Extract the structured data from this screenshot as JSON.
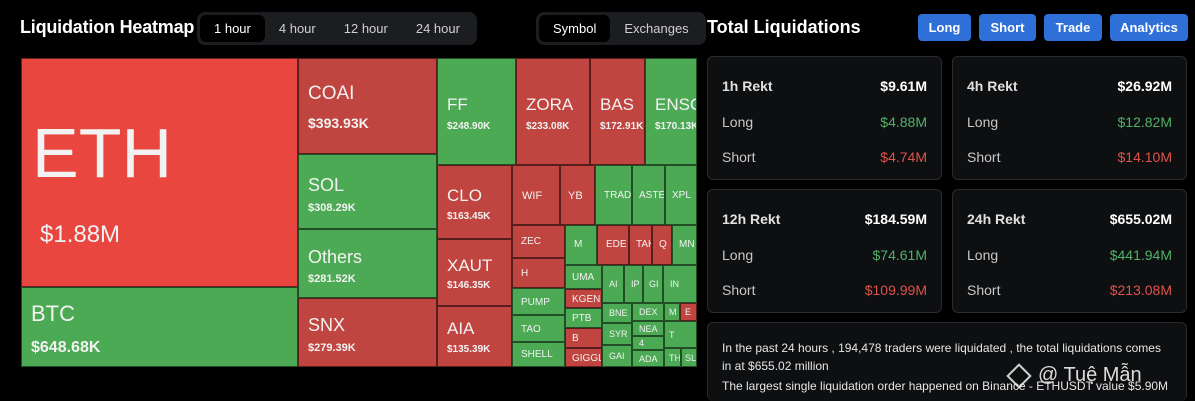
{
  "header": {
    "title": "Liquidation Heatmap",
    "time_tabs": [
      "1 hour",
      "4 hour",
      "12 hour",
      "24 hour"
    ],
    "view_tabs": [
      "Symbol",
      "Exchanges"
    ]
  },
  "right_header": {
    "title": "Total Liquidations",
    "buttons": [
      "Long",
      "Short",
      "Trade",
      "Analytics"
    ]
  },
  "heatmap": {
    "cells": [
      {
        "symbol": "ETH",
        "value": "$1.88M"
      },
      {
        "symbol": "BTC",
        "value": "$648.68K"
      },
      {
        "symbol": "COAI",
        "value": "$393.93K"
      },
      {
        "symbol": "SOL",
        "value": "$308.29K"
      },
      {
        "symbol": "Others",
        "value": "$281.52K"
      },
      {
        "symbol": "SNX",
        "value": "$279.39K"
      },
      {
        "symbol": "FF",
        "value": "$248.90K"
      },
      {
        "symbol": "ZORA",
        "value": "$233.08K"
      },
      {
        "symbol": "BAS",
        "value": "$172.91K"
      },
      {
        "symbol": "ENSO",
        "value": "$170.13K"
      },
      {
        "symbol": "CLO",
        "value": "$163.45K"
      },
      {
        "symbol": "XAUT",
        "value": "$146.35K"
      },
      {
        "symbol": "AIA",
        "value": "$135.39K"
      },
      {
        "symbol": "WIF",
        "value": ""
      },
      {
        "symbol": "YB",
        "value": ""
      },
      {
        "symbol": "TRAD",
        "value": ""
      },
      {
        "symbol": "ASTE",
        "value": ""
      },
      {
        "symbol": "XPL",
        "value": ""
      },
      {
        "symbol": "ZEC",
        "value": ""
      },
      {
        "symbol": "M",
        "value": ""
      },
      {
        "symbol": "EDE",
        "value": ""
      },
      {
        "symbol": "TAK",
        "value": ""
      },
      {
        "symbol": "Q",
        "value": ""
      },
      {
        "symbol": "MN",
        "value": ""
      },
      {
        "symbol": "H",
        "value": ""
      },
      {
        "symbol": "UMA",
        "value": ""
      },
      {
        "symbol": "AI",
        "value": ""
      },
      {
        "symbol": "IP",
        "value": ""
      },
      {
        "symbol": "GI",
        "value": ""
      },
      {
        "symbol": "IN",
        "value": ""
      },
      {
        "symbol": "PUMP",
        "value": ""
      },
      {
        "symbol": "KGEN",
        "value": ""
      },
      {
        "symbol": "PTB",
        "value": ""
      },
      {
        "symbol": "BNE",
        "value": ""
      },
      {
        "symbol": "DEX",
        "value": ""
      },
      {
        "symbol": "M",
        "value": ""
      },
      {
        "symbol": "E",
        "value": ""
      },
      {
        "symbol": "TAO",
        "value": ""
      },
      {
        "symbol": "SYR",
        "value": ""
      },
      {
        "symbol": "NEA",
        "value": ""
      },
      {
        "symbol": "B",
        "value": ""
      },
      {
        "symbol": "4",
        "value": ""
      },
      {
        "symbol": "T",
        "value": ""
      },
      {
        "symbol": "SHELL",
        "value": ""
      },
      {
        "symbol": "GIGGL",
        "value": ""
      },
      {
        "symbol": "GAI",
        "value": ""
      },
      {
        "symbol": "ADA",
        "value": ""
      },
      {
        "symbol": "TH",
        "value": ""
      },
      {
        "symbol": "SL",
        "value": ""
      }
    ]
  },
  "stats": [
    {
      "label": "1h Rekt",
      "total": "$9.61M",
      "long_label": "Long",
      "long": "$4.88M",
      "short_label": "Short",
      "short": "$4.74M"
    },
    {
      "label": "4h Rekt",
      "total": "$26.92M",
      "long_label": "Long",
      "long": "$12.82M",
      "short_label": "Short",
      "short": "$14.10M"
    },
    {
      "label": "12h Rekt",
      "total": "$184.59M",
      "long_label": "Long",
      "long": "$74.61M",
      "short_label": "Short",
      "short": "$109.99M"
    },
    {
      "label": "24h Rekt",
      "total": "$655.02M",
      "long_label": "Long",
      "long": "$441.94M",
      "short_label": "Short",
      "short": "$213.08M"
    }
  ],
  "summary": {
    "line1": "In the past 24 hours , 194,478 traders were liquidated , the total liquidations comes in at $655.02 million",
    "line2": "The largest single liquidation order happened on Binance - ETHUSDT value $5.90M"
  },
  "watermark": "@ Tuệ Mẫn",
  "colors": {
    "green": "#4caa55",
    "red": "#c0443f",
    "accent": "#2f6fd8"
  }
}
